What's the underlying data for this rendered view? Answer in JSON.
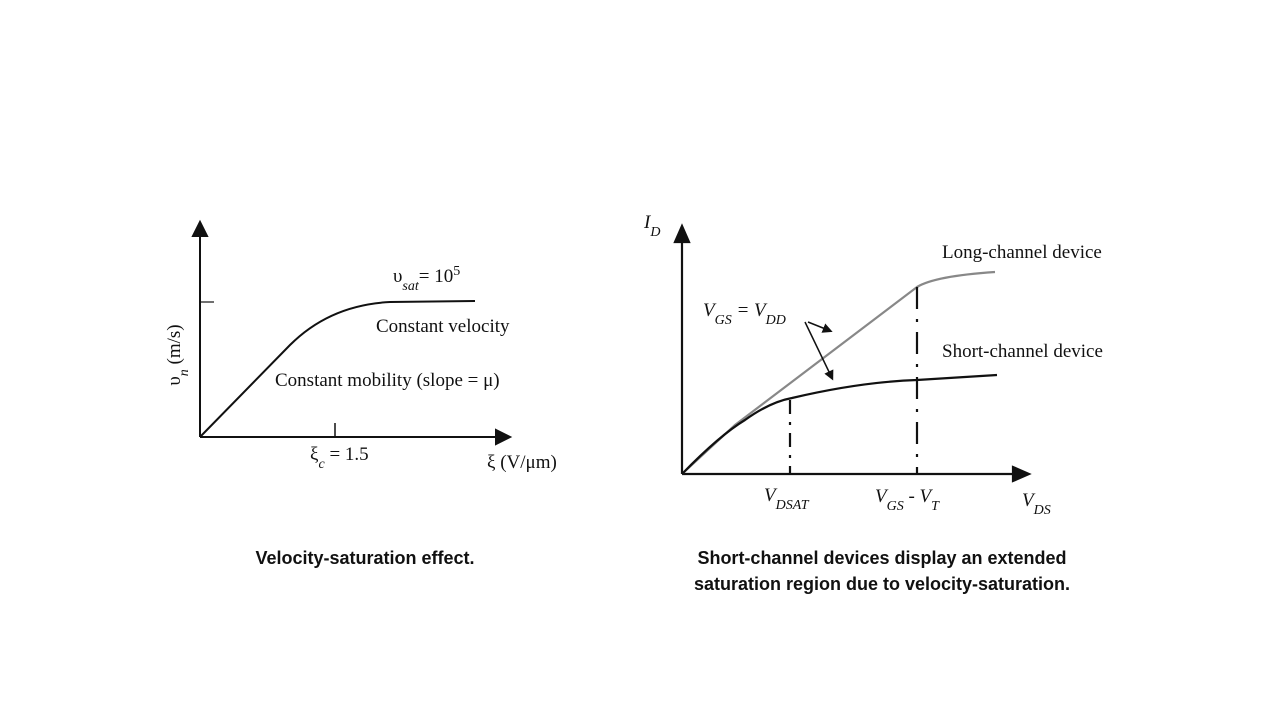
{
  "left": {
    "y_axis_label": {
      "base": "υ",
      "sub": "n",
      "rest": " (m/s)"
    },
    "vsat": {
      "base": "υ",
      "sub": "sat",
      "rest": "= 10",
      "sup": "5"
    },
    "constant_velocity": "Constant velocity",
    "constant_mobility": "Constant mobility (slope = μ)",
    "xi_c": {
      "base": "ξ",
      "sub": "c",
      "rest": " = 1.5"
    },
    "x_axis_label": "ξ (V/μm)",
    "caption": "Velocity-saturation effect."
  },
  "right": {
    "y_axis_label": {
      "base": "I",
      "sub": "D"
    },
    "vgs_vdd": {
      "base": "V",
      "sub": "GS",
      "rest": " = V",
      "sub2": "DD"
    },
    "long_channel": "Long-channel device",
    "short_channel": "Short-channel device",
    "vdsat": {
      "base": "V",
      "sub": "DSAT"
    },
    "vgs_vt": {
      "base": "V",
      "sub": "GS",
      "rest": " - V",
      "sub2": "T"
    },
    "x_axis_label": {
      "base": "V",
      "sub": "DS"
    },
    "caption": "Short-channel devices display an extended saturation region due to velocity-saturation."
  }
}
